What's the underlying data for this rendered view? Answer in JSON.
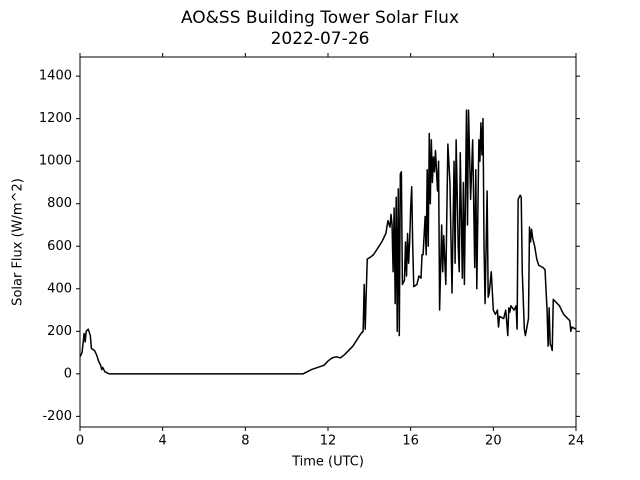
{
  "chart_data": {
    "type": "line",
    "title": "AO&SS Building Tower Solar Flux",
    "subtitle": "2022-07-26",
    "x_label": "Time (UTC)",
    "y_label": "Solar Flux (W/m^2)",
    "xlim": [
      0,
      24
    ],
    "xticks": [
      0,
      4,
      8,
      12,
      16,
      20,
      24
    ],
    "ylim": [
      -250,
      1490
    ],
    "yticks": [
      -200,
      0,
      200,
      400,
      600,
      800,
      1000,
      1200,
      1400
    ],
    "grid": false,
    "x": [
      0,
      0.1,
      0.2,
      0.25,
      0.3,
      0.4,
      0.5,
      0.55,
      0.7,
      0.8,
      0.9,
      1.0,
      1.05,
      1.1,
      1.2,
      1.4,
      2,
      6,
      10,
      10.8,
      11,
      11.2,
      11.5,
      11.8,
      12,
      12.2,
      12.4,
      12.6,
      12.8,
      13,
      13.2,
      13.4,
      13.6,
      13.7,
      13.75,
      13.8,
      13.85,
      13.9,
      14,
      14.2,
      14.4,
      14.6,
      14.8,
      14.9,
      15,
      15.05,
      15.1,
      15.15,
      15.2,
      15.25,
      15.3,
      15.35,
      15.4,
      15.45,
      15.5,
      15.55,
      15.6,
      15.7,
      15.75,
      15.8,
      15.85,
      15.9,
      15.95,
      16,
      16.05,
      16.1,
      16.15,
      16.3,
      16.4,
      16.5,
      16.55,
      16.6,
      16.7,
      16.75,
      16.8,
      16.85,
      16.9,
      16.95,
      17,
      17.05,
      17.1,
      17.15,
      17.2,
      17.3,
      17.35,
      17.4,
      17.5,
      17.55,
      17.6,
      17.7,
      17.8,
      17.9,
      18,
      18.1,
      18.15,
      18.2,
      18.3,
      18.35,
      18.4,
      18.5,
      18.55,
      18.6,
      18.7,
      18.75,
      18.8,
      18.9,
      19,
      19.1,
      19.15,
      19.2,
      19.3,
      19.35,
      19.4,
      19.45,
      19.5,
      19.55,
      19.6,
      19.7,
      19.75,
      19.8,
      19.9,
      20,
      20.1,
      20.2,
      20.25,
      20.3,
      20.5,
      20.6,
      20.7,
      20.75,
      20.8,
      20.85,
      21,
      21.1,
      21.15,
      21.2,
      21.3,
      21.35,
      21.4,
      21.5,
      21.55,
      21.7,
      21.75,
      21.8,
      21.85,
      21.9,
      22,
      22.1,
      22.2,
      22.4,
      22.5,
      22.6,
      22.65,
      22.7,
      22.75,
      22.8,
      22.85,
      22.9,
      23.0,
      23.2,
      23.4,
      23.6,
      23.7,
      23.75,
      23.8,
      24
    ],
    "series": [
      {
        "name": "Solar Flux",
        "color": "#000000",
        "values": [
          80,
          100,
          190,
          150,
          200,
          210,
          180,
          120,
          110,
          90,
          60,
          40,
          20,
          30,
          10,
          0,
          0,
          0,
          0,
          0,
          10,
          20,
          30,
          40,
          60,
          75,
          80,
          75,
          90,
          110,
          130,
          160,
          190,
          200,
          420,
          210,
          380,
          540,
          545,
          560,
          590,
          620,
          660,
          720,
          690,
          750,
          700,
          480,
          780,
          330,
          830,
          200,
          870,
          180,
          940,
          950,
          420,
          440,
          620,
          460,
          660,
          520,
          620,
          780,
          880,
          600,
          410,
          420,
          460,
          450,
          560,
          560,
          740,
          560,
          960,
          600,
          1130,
          800,
          1100,
          900,
          1020,
          950,
          1050,
          860,
          1000,
          300,
          700,
          480,
          650,
          420,
          1080,
          900,
          380,
          1000,
          520,
          1100,
          600,
          480,
          1040,
          450,
          900,
          420,
          1240,
          700,
          1240,
          820,
          1100,
          500,
          960,
          400,
          1100,
          1000,
          1180,
          1030,
          1200,
          600,
          330,
          860,
          360,
          380,
          480,
          300,
          280,
          300,
          220,
          270,
          260,
          300,
          180,
          310,
          290,
          320,
          300,
          320,
          210,
          820,
          840,
          830,
          480,
          210,
          180,
          260,
          690,
          620,
          680,
          640,
          600,
          540,
          510,
          500,
          490,
          300,
          130,
          310,
          140,
          130,
          110,
          350,
          340,
          320,
          280,
          260,
          250,
          200,
          220,
          210
        ]
      }
    ]
  }
}
